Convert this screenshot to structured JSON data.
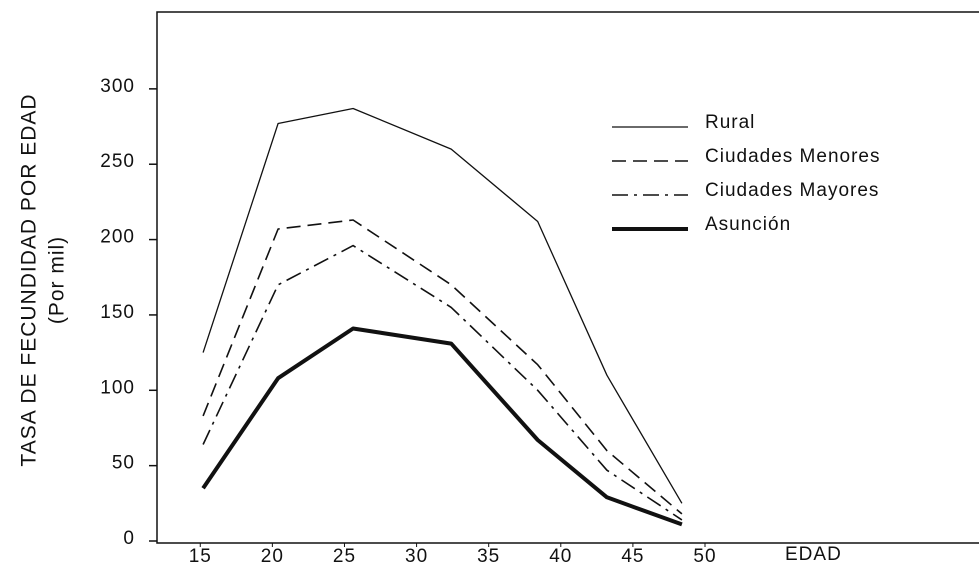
{
  "chart_data": {
    "type": "line",
    "ylabel": "TASA DE FECUNDIDAD POR EDAD",
    "ylabel_unit": "(Por mil)",
    "xlabel": "EDAD",
    "x": [
      15.2,
      20.4,
      25.6,
      32.4,
      38.4,
      43.2,
      48.4
    ],
    "series": [
      {
        "name": "Rural",
        "color": "#111111",
        "line_style": "solid",
        "line_width": 1.3,
        "values": [
          125,
          277,
          287,
          260,
          212,
          110,
          25
        ]
      },
      {
        "name": "Ciudades Menores",
        "color": "#111111",
        "line_style": "dashed",
        "line_width": 1.6,
        "values": [
          83,
          207,
          213,
          170,
          117,
          60,
          18
        ]
      },
      {
        "name": "Ciudades Mayores",
        "color": "#111111",
        "line_style": "dashdot",
        "line_width": 1.6,
        "values": [
          64,
          170,
          196,
          155,
          100,
          47,
          14
        ]
      },
      {
        "name": "Asunción",
        "color": "#111111",
        "line_style": "solid",
        "line_width": 4,
        "values": [
          35,
          108,
          141,
          131,
          67,
          29,
          11
        ]
      }
    ],
    "xlim": [
      12,
      69
    ],
    "xticks": [
      15,
      20,
      25,
      30,
      35,
      40,
      45,
      50
    ],
    "ylim": [
      0,
      351
    ],
    "yticks": [
      0,
      50,
      100,
      150,
      200,
      250,
      300
    ],
    "legend": "upper right",
    "grid": false
  }
}
